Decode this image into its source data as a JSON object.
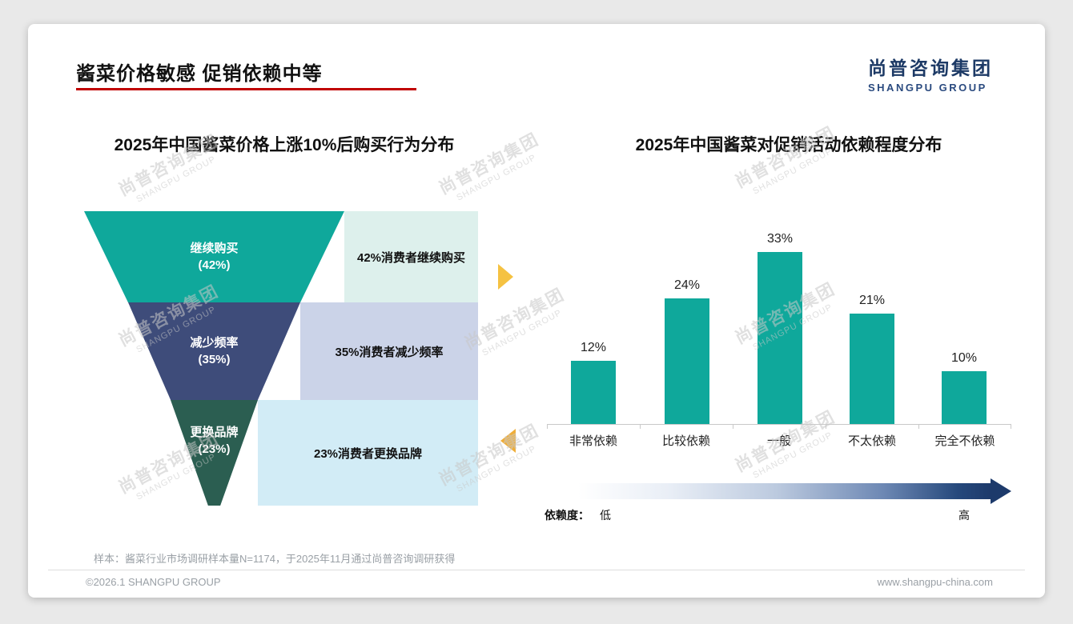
{
  "slide": {
    "title": "酱菜价格敏感 促销依赖中等",
    "logo_cn": "尚普咨询集团",
    "logo_en": "SHANGPU GROUP",
    "watermark_cn": "尚普咨询集团",
    "watermark_en": "SHANGPU GROUP",
    "sample_note": "样本：酱菜行业市场调研样本量N=1174，于2025年11月通过尚普咨询调研获得",
    "copyright": "©2026.1 SHANGPU GROUP",
    "website": "www.shangpu-china.com"
  },
  "colors": {
    "accent_red": "#c00000",
    "logo_navy": "#1d3a66",
    "teal": "#0fa89b",
    "funnel_blue": "#3e4c7a",
    "funnel_green": "#2b5e51",
    "arrow_yellow": "#f5c242",
    "arrow_orange": "#efae3a",
    "gradient_navy": "#1d3a6b"
  },
  "chart_data": [
    {
      "type": "funnel",
      "title": "2025年中国酱菜价格上涨10%后购买行为分布",
      "levels": [
        {
          "label": "继续购买",
          "value_label": "(42%)",
          "value": 42,
          "annotation": "42%消费者继续购买",
          "color": "#0fa89b",
          "annotation_bg": "#ddf0ec"
        },
        {
          "label": "减少频率",
          "value_label": "(35%)",
          "value": 35,
          "annotation": "35%消费者减少频率",
          "color": "#3e4c7a",
          "annotation_bg": "#cbd3e8"
        },
        {
          "label": "更换品牌",
          "value_label": "(23%)",
          "value": 23,
          "annotation": "23%消费者更换品牌",
          "color": "#2b5e51",
          "annotation_bg": "#d2ecf6"
        }
      ]
    },
    {
      "type": "bar",
      "title": "2025年中国酱菜对促销活动依赖程度分布",
      "categories": [
        "非常依赖",
        "比较依赖",
        "一般",
        "不太依赖",
        "完全不依赖"
      ],
      "values": [
        12,
        24,
        33,
        21,
        10
      ],
      "value_labels": [
        "12%",
        "24%",
        "33%",
        "21%",
        "10%"
      ],
      "bar_color": "#0fa89b",
      "ylim": [
        0,
        35
      ],
      "grid": false,
      "legend": "none",
      "axis_note": {
        "label": "依赖度：",
        "low": "低",
        "high": "高"
      }
    }
  ]
}
